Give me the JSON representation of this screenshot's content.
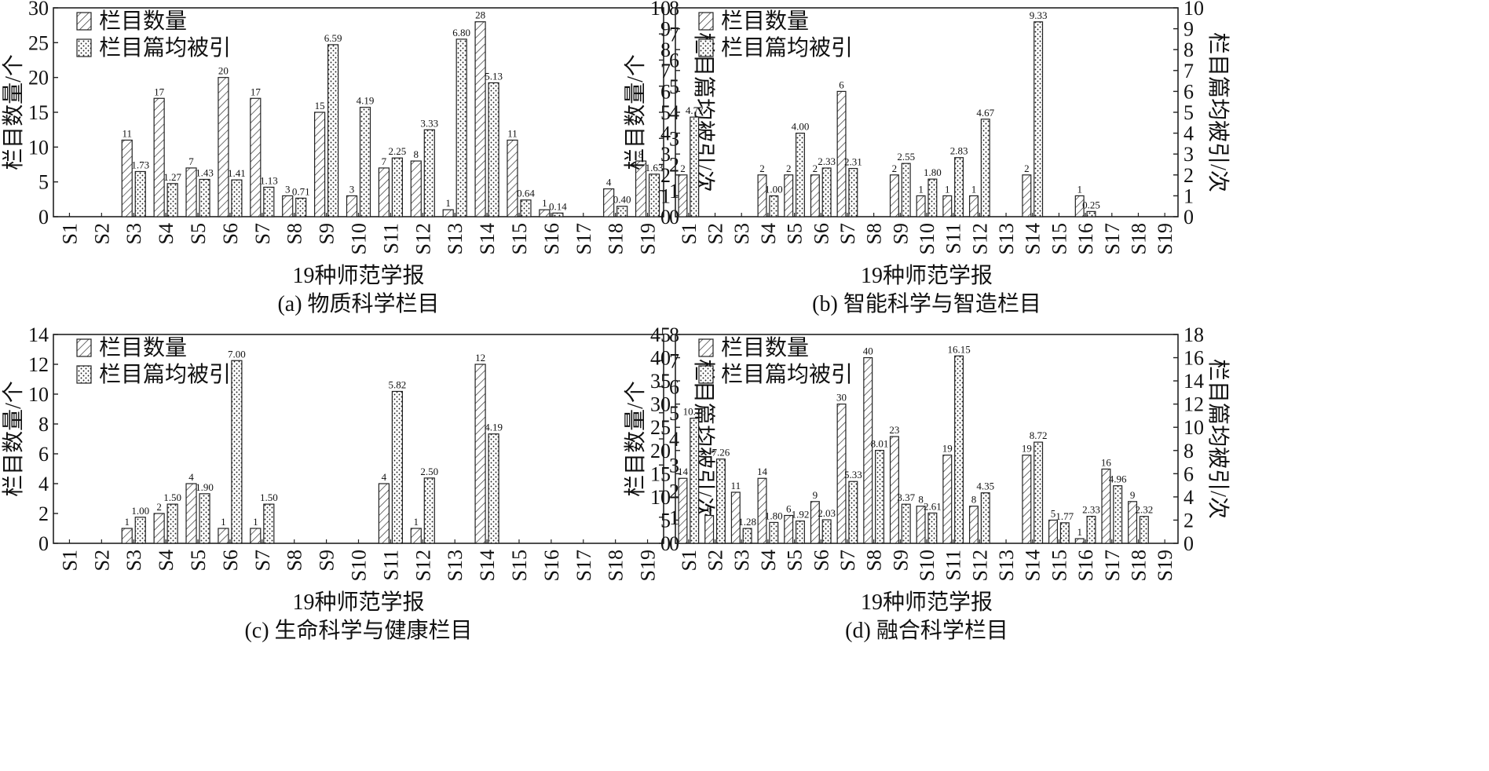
{
  "shared": {
    "categories": [
      "S1",
      "S2",
      "S3",
      "S4",
      "S5",
      "S6",
      "S7",
      "S8",
      "S9",
      "S10",
      "S11",
      "S12",
      "S13",
      "S14",
      "S15",
      "S16",
      "S17",
      "S18",
      "S19"
    ],
    "xlabel": "19种师范学报",
    "ylabel_left": "栏目数量/个",
    "ylabel_right": "栏目篇均被引/次",
    "legend": [
      "栏目数量",
      "栏目篇均被引"
    ]
  },
  "chart_data": [
    {
      "type": "bar",
      "caption": "(a) 物质科学栏目",
      "legend_position": "top-left",
      "grid": false,
      "ylim_left": [
        0,
        30
      ],
      "yticks_left": [
        0,
        5,
        10,
        15,
        20,
        25,
        30
      ],
      "ylim_right": [
        0,
        8
      ],
      "yticks_right": [
        0,
        1,
        2,
        3,
        4,
        5,
        6,
        7,
        8
      ],
      "series": [
        {
          "name": "栏目数量",
          "axis": "left",
          "values": [
            null,
            null,
            11,
            17,
            7,
            20,
            17,
            3,
            15,
            3,
            7,
            8,
            1,
            28,
            11,
            1,
            null,
            4,
            8
          ],
          "labels": [
            "",
            "",
            "11",
            "17",
            "7",
            "20",
            "17",
            "3",
            "15",
            "3",
            "7",
            "8",
            "1",
            "28",
            "11",
            "1",
            "",
            "4",
            "8"
          ]
        },
        {
          "name": "栏目篇均被引",
          "axis": "right",
          "values": [
            null,
            null,
            1.73,
            1.27,
            1.43,
            1.41,
            1.13,
            0.71,
            6.59,
            4.19,
            2.25,
            3.33,
            6.8,
            5.13,
            0.64,
            0.14,
            null,
            0.4,
            1.63
          ],
          "labels": [
            "",
            "",
            "1.73",
            "1.27",
            "1.43",
            "1.41",
            "1.13",
            "0.71",
            "6.59",
            "4.19",
            "2.25",
            "3.33",
            "6.80",
            "5.13",
            "0.64",
            "0.14",
            "",
            "0.40",
            "1.63"
          ]
        }
      ]
    },
    {
      "type": "bar",
      "caption": "(b) 智能科学与智造栏目",
      "legend_position": "top-left",
      "grid": false,
      "ylim_left": [
        0,
        10
      ],
      "yticks_left": [
        0,
        1,
        2,
        3,
        4,
        5,
        6,
        7,
        8,
        9,
        10
      ],
      "ylim_right": [
        0,
        10
      ],
      "yticks_right": [
        0,
        1,
        2,
        3,
        4,
        5,
        6,
        7,
        8,
        9,
        10
      ],
      "series": [
        {
          "name": "栏目数量",
          "axis": "left",
          "values": [
            2,
            null,
            null,
            2,
            2,
            2,
            6,
            null,
            2,
            1,
            1,
            1,
            null,
            2,
            null,
            1,
            null,
            null,
            null
          ],
          "labels": [
            "2",
            "",
            "",
            "2",
            "2",
            "2",
            "6",
            "",
            "2",
            "1",
            "1",
            "1",
            "",
            "2",
            "",
            "1",
            "",
            "",
            ""
          ]
        },
        {
          "name": "栏目篇均被引",
          "axis": "right",
          "values": [
            4.77,
            null,
            null,
            1.0,
            4.0,
            2.33,
            2.31,
            null,
            2.55,
            1.8,
            2.83,
            4.67,
            null,
            9.33,
            null,
            0.25,
            null,
            null,
            null
          ],
          "labels": [
            "4.77",
            "",
            "",
            "1.00",
            "4.00",
            "2.33",
            "2.31",
            "",
            "2.55",
            "1.80",
            "2.83",
            "4.67",
            "",
            "9.33",
            "",
            "0.25",
            "",
            "",
            ""
          ]
        }
      ]
    },
    {
      "type": "bar",
      "caption": "(c) 生命科学与健康栏目",
      "legend_position": "top-left",
      "grid": false,
      "ylim_left": [
        0,
        14
      ],
      "yticks_left": [
        0,
        2,
        4,
        6,
        8,
        10,
        12,
        14
      ],
      "ylim_right": [
        0,
        8
      ],
      "yticks_right": [
        0,
        1,
        2,
        3,
        4,
        5,
        6,
        7,
        8
      ],
      "series": [
        {
          "name": "栏目数量",
          "axis": "left",
          "values": [
            null,
            null,
            1,
            2,
            4,
            1,
            1,
            null,
            null,
            null,
            4,
            1,
            null,
            12,
            null,
            null,
            null,
            null,
            null
          ],
          "labels": [
            "",
            "",
            "1",
            "2",
            "4",
            "1",
            "1",
            "",
            "",
            "",
            "4",
            "1",
            "",
            "12",
            "",
            "",
            "",
            "",
            ""
          ]
        },
        {
          "name": "栏目篇均被引",
          "axis": "right",
          "values": [
            null,
            null,
            1.0,
            1.5,
            1.9,
            7.0,
            1.5,
            null,
            null,
            null,
            5.82,
            2.5,
            null,
            4.19,
            null,
            null,
            null,
            null,
            null
          ],
          "labels": [
            "",
            "",
            "1.00",
            "1.50",
            "1.90",
            "7.00",
            "1.50",
            "",
            "",
            "",
            "5.82",
            "2.50",
            "",
            "4.19",
            "",
            "",
            "",
            "",
            ""
          ]
        }
      ]
    },
    {
      "type": "bar",
      "caption": "(d) 融合科学栏目",
      "legend_position": "top-left",
      "grid": false,
      "ylim_left": [
        0,
        45
      ],
      "yticks_left": [
        0,
        5,
        10,
        15,
        20,
        25,
        30,
        35,
        40,
        45
      ],
      "ylim_right": [
        0,
        18
      ],
      "yticks_right": [
        0,
        2,
        4,
        6,
        8,
        10,
        12,
        14,
        16,
        18
      ],
      "series": [
        {
          "name": "栏目数量",
          "axis": "left",
          "values": [
            14,
            6,
            11,
            14,
            6,
            9,
            30,
            40,
            23,
            8,
            19,
            8,
            null,
            19,
            5,
            1,
            16,
            9,
            null
          ],
          "labels": [
            "14",
            "6",
            "11",
            "14",
            "6",
            "9",
            "30",
            "40",
            "23",
            "8",
            "19",
            "8",
            "",
            "19",
            "5",
            "1",
            "16",
            "9",
            ""
          ]
        },
        {
          "name": "栏目篇均被引",
          "axis": "right",
          "values": [
            10.78,
            7.26,
            1.28,
            1.8,
            1.92,
            2.03,
            5.33,
            8.01,
            3.37,
            2.61,
            16.15,
            4.35,
            null,
            8.72,
            1.77,
            2.33,
            4.96,
            2.32,
            null
          ],
          "labels": [
            "10.78",
            "7.26",
            "1.28",
            "1.80",
            "1.92",
            "2.03",
            "5.33",
            "8.01",
            "3.37",
            "2.61",
            "16.15",
            "4.35",
            "",
            "8.72",
            "1.77",
            "2.33",
            "4.96",
            "2.32",
            ""
          ]
        }
      ]
    }
  ]
}
